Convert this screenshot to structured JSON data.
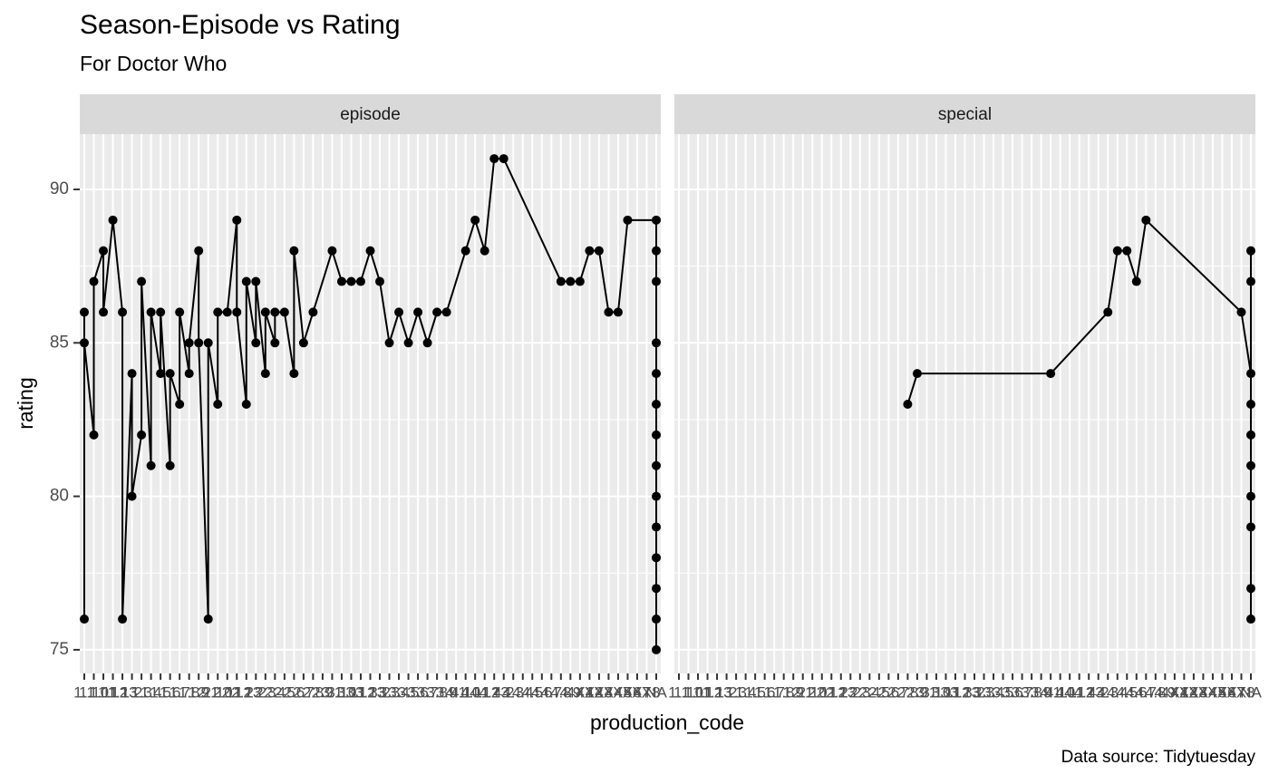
{
  "chart_data": {
    "type": "line",
    "title": "Season-Episode vs Rating",
    "subtitle": "For Doctor Who",
    "x_label": "production_code",
    "y_label": "rating",
    "caption": "Data source: Tidytuesday",
    "categories": [
      "1.1",
      "1.10",
      "1.11",
      "1.12",
      "1.13",
      "1.2",
      "1.3",
      "1.4",
      "1.5",
      "1.6",
      "1.7",
      "1.8",
      "1.9",
      "2.1",
      "2.10",
      "2.11",
      "2.12",
      "2.13",
      "2.2",
      "2.3",
      "2.4",
      "2.5",
      "2.6",
      "2.7",
      "2.8",
      "2.9",
      "3.1",
      "3.10",
      "3.11",
      "3.12",
      "3.13",
      "3.2",
      "3.3",
      "3.4",
      "3.5",
      "3.6",
      "3.7",
      "3.8",
      "3.9",
      "4.1",
      "4.10",
      "4.11",
      "4.12",
      "4.13",
      "4.2",
      "4.3",
      "4.4",
      "4.5",
      "4.6",
      "4.7",
      "4.8",
      "4.9",
      "4X1",
      "4X2",
      "4X3",
      "4X4",
      "4X5",
      "4X6",
      "4X7",
      "4X8",
      "NA"
    ],
    "ylim": [
      74.23,
      91.8
    ],
    "yticks": [
      75,
      80,
      85,
      90
    ],
    "grid": true,
    "color": "#000000",
    "panels": [
      {
        "name": "episode",
        "x": [
          "1.1",
          "1.1",
          "1.1",
          "1.10",
          "1.10",
          "1.11",
          "1.11",
          "1.12",
          "1.13",
          "1.13",
          "1.2",
          "1.2",
          "1.3",
          "1.3",
          "1.4",
          "1.4",
          "1.5",
          "1.5",
          "1.6",
          "1.6",
          "1.7",
          "1.7",
          "1.8",
          "1.8",
          "1.9",
          "1.9",
          "2.1",
          "2.1",
          "2.10",
          "2.10",
          "2.11",
          "2.12",
          "2.12",
          "2.13",
          "2.13",
          "2.2",
          "2.2",
          "2.3",
          "2.3",
          "2.4",
          "2.4",
          "2.5",
          "2.6",
          "2.6",
          "2.7",
          "2.8",
          "3.1",
          "3.10",
          "3.11",
          "3.12",
          "3.13",
          "3.2",
          "3.3",
          "3.4",
          "3.5",
          "3.6",
          "3.7",
          "3.8",
          "3.9",
          "4.10",
          "4.11",
          "4.12",
          "4.13",
          "4.2",
          "4.8",
          "4.9",
          "4X1",
          "4X2",
          "4X3",
          "4X4",
          "4X5",
          "4X6",
          "NA",
          "NA",
          "NA",
          "NA",
          "NA",
          "NA",
          "NA",
          "NA",
          "NA",
          "NA",
          "NA",
          "NA",
          "NA",
          "NA"
        ],
        "values": [
          76,
          86,
          85,
          82,
          87,
          88,
          86,
          89,
          86,
          76,
          84,
          80,
          82,
          87,
          81,
          86,
          84,
          86,
          81,
          84,
          83,
          86,
          84,
          85,
          88,
          85,
          76,
          85,
          83,
          86,
          86,
          89,
          86,
          83,
          87,
          85,
          87,
          84,
          86,
          85,
          86,
          86,
          84,
          88,
          85,
          86,
          88,
          87,
          87,
          87,
          88,
          87,
          85,
          86,
          85,
          86,
          85,
          86,
          86,
          88,
          89,
          88,
          91,
          91,
          87,
          87,
          87,
          88,
          88,
          86,
          86,
          89,
          89,
          88,
          87,
          85,
          84,
          83,
          82,
          81,
          80,
          79,
          78,
          77,
          76,
          75
        ]
      },
      {
        "name": "special",
        "x": [
          "2.8",
          "2.9",
          "4.1",
          "4.3",
          "4.4",
          "4.5",
          "4.6",
          "4.7",
          "4X8",
          "NA",
          "NA",
          "NA",
          "NA",
          "NA",
          "NA",
          "NA",
          "NA",
          "NA",
          "NA"
        ],
        "values": [
          83,
          84,
          84,
          86,
          88,
          88,
          87,
          89,
          86,
          84,
          87,
          88,
          83,
          82,
          81,
          80,
          79,
          77,
          76
        ]
      }
    ]
  }
}
